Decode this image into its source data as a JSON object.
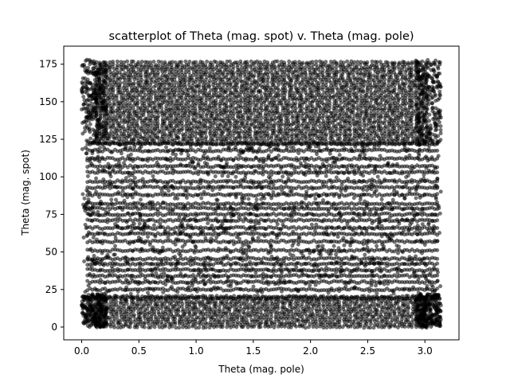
{
  "chart_data": {
    "type": "scatter",
    "title": "scatterplot of Theta (mag. spot) v. Theta (mag. pole)",
    "xlabel": "Theta (mag. pole)",
    "ylabel": "Theta (mag. spot)",
    "xlim": [
      -0.157,
      3.298
    ],
    "ylim": [
      -8.5,
      187.0
    ],
    "xticks": [
      0.0,
      0.5,
      1.0,
      1.5,
      2.0,
      2.5,
      3.0
    ],
    "xtick_labels": [
      "0.0",
      "0.5",
      "1.0",
      "1.5",
      "2.0",
      "2.5",
      "3.0"
    ],
    "yticks": [
      0,
      25,
      50,
      75,
      100,
      125,
      150,
      175
    ],
    "ytick_labels": [
      "0",
      "25",
      "50",
      "75",
      "100",
      "125",
      "150",
      "175"
    ],
    "grid": false,
    "marker_color": "#000000",
    "marker_alpha": 0.55,
    "x_range": [
      0.0,
      3.14
    ],
    "dense_bands": [
      {
        "y_range": [
          0.0,
          22.0
        ],
        "density": 0.95
      },
      {
        "y_range": [
          122.0,
          178.0
        ],
        "density": 1.0
      }
    ],
    "sparse_region": {
      "y_range": [
        22.0,
        122.0
      ],
      "density": 0.45
    },
    "horizontal_lines_y": [
      122.0,
      117.5,
      112.0,
      107.0,
      103.0,
      97.0,
      93.0,
      88.0,
      82.0,
      79.0,
      75.0,
      71.0,
      66.0,
      62.0,
      57.0,
      51.0,
      45.5,
      42.0,
      38.0,
      34.0,
      30.0,
      25.0,
      19.5
    ]
  }
}
